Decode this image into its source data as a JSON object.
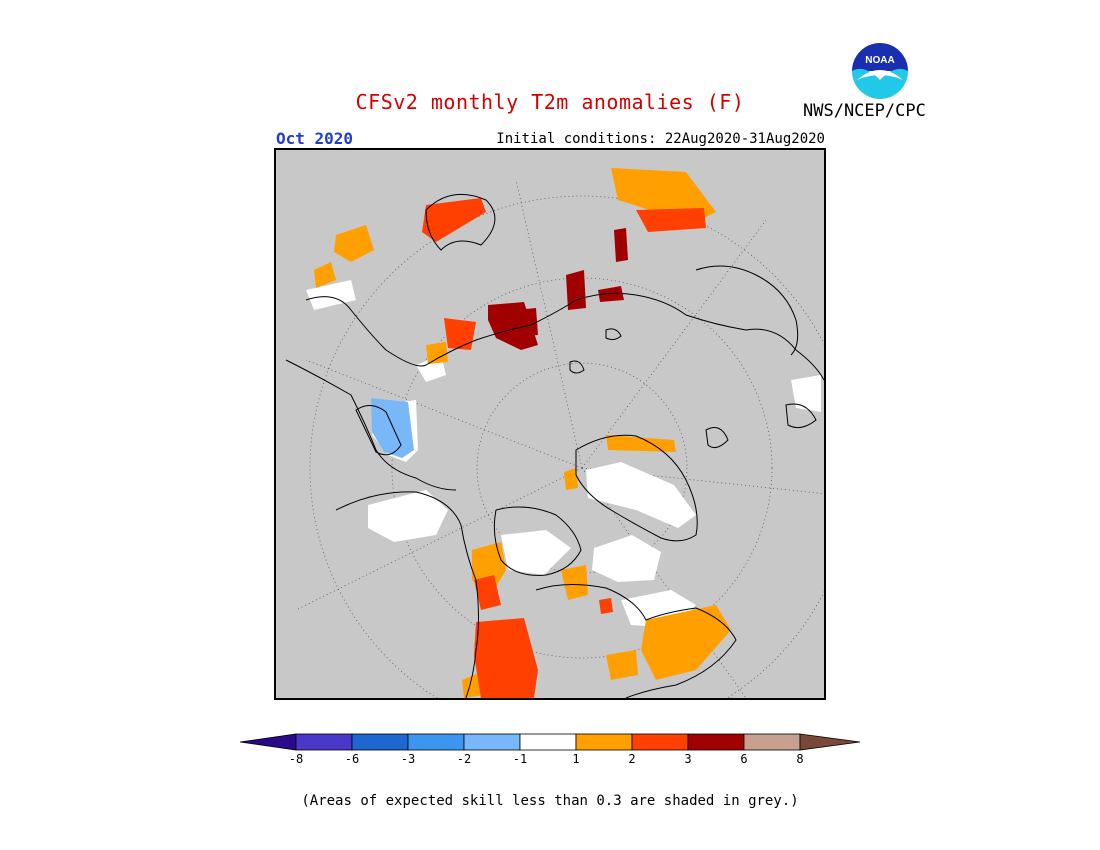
{
  "title": "CFSv2 monthly T2m anomalies (F)",
  "period": "Oct 2020",
  "initial_conditions": "Initial conditions: 22Aug2020-31Aug2020",
  "agency": "NWS/NCEP/CPC",
  "logo_text": "NOAA",
  "legend": {
    "colors": [
      "#2a0a8a",
      "#4a38c8",
      "#1e66d0",
      "#3c96f0",
      "#78b8f8",
      "#ffffff",
      "#ffa000",
      "#ff4000",
      "#a00000",
      "#c8a090",
      "#784838"
    ],
    "ticks": [
      "-8",
      "-6",
      "-3",
      "-2",
      "-1",
      "1",
      "2",
      "3",
      "6",
      "8"
    ]
  },
  "map": {
    "projection": "north polar stereographic",
    "background_color": "#c8c8c8",
    "note": "(Areas of expected skill less than 0.3 are shaded in grey.)"
  }
}
